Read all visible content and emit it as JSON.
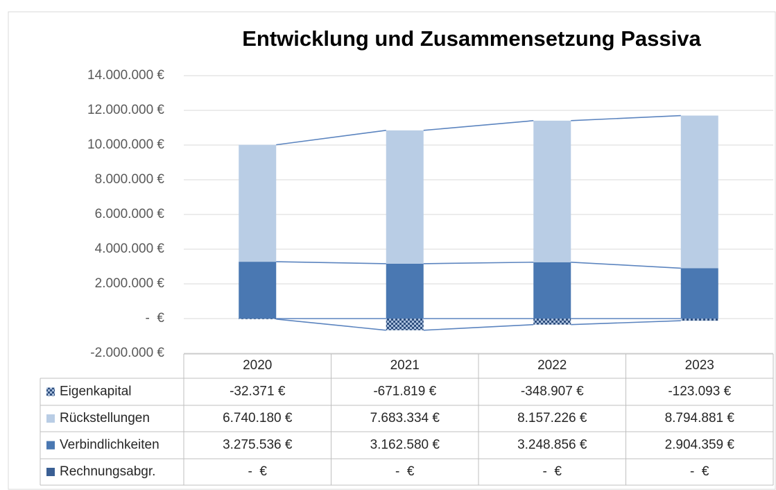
{
  "chart_data": {
    "type": "stacked_bar",
    "title": "Entwicklung und Zusammensetzung Passiva",
    "categories": [
      "2020",
      "2021",
      "2022",
      "2023"
    ],
    "series": [
      {
        "name": "Eigenkapital",
        "color": "#2e4e7e",
        "pattern": "checker",
        "values": [
          -32371,
          -671819,
          -348907,
          -123093
        ],
        "value_labels": [
          "-32.371 €",
          "-671.819 €",
          "-348.907 €",
          "-123.093 €"
        ]
      },
      {
        "name": "Rückstellungen",
        "color": "#b9cde5",
        "values": [
          6740180,
          7683334,
          8157226,
          8794881
        ],
        "value_labels": [
          "6.740.180 €",
          "7.683.334 €",
          "8.157.226 €",
          "8.794.881 €"
        ]
      },
      {
        "name": "Verbindlichkeiten",
        "color": "#4a78b2",
        "values": [
          3275536,
          3162580,
          3248856,
          2904359
        ],
        "value_labels": [
          "3.275.536 €",
          "3.162.580 €",
          "3.248.856 €",
          "2.904.359 €"
        ]
      },
      {
        "name": "Rechnungsabgr.",
        "color": "#3a5f94",
        "values": [
          0,
          0,
          0,
          0
        ],
        "value_labels": [
          "-  €",
          "-  €",
          "-  €",
          "-  €"
        ]
      }
    ],
    "ylim": [
      -2000000,
      14000000
    ],
    "yticks": [
      {
        "value": -2000000,
        "label": "-2.000.000 €"
      },
      {
        "value": 0,
        "label": "-  €"
      },
      {
        "value": 2000000,
        "label": "2.000.000 €"
      },
      {
        "value": 4000000,
        "label": "4.000.000 €"
      },
      {
        "value": 6000000,
        "label": "6.000.000 €"
      },
      {
        "value": 8000000,
        "label": "8.000.000 €"
      },
      {
        "value": 10000000,
        "label": "10.000.000 €"
      },
      {
        "value": 12000000,
        "label": "12.000.000 €"
      },
      {
        "value": 14000000,
        "label": "14.000.000 €"
      }
    ],
    "grid": true,
    "series_lines": true,
    "data_table": true
  }
}
